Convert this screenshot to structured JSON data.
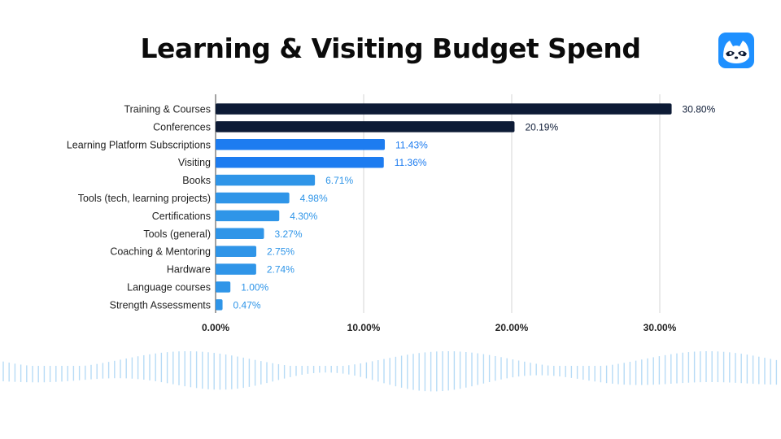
{
  "header": {
    "title": "Learning & Visiting Budget Spend"
  },
  "logo": {
    "icon": "raccoon-logo-icon",
    "color": "#1e90ff"
  },
  "colors": {
    "dark": "#0d1b36",
    "blue": "#1d7cf0",
    "light_blue": "#2f95e8",
    "wave": "#9fd0f3"
  },
  "chart_data": {
    "type": "bar",
    "orientation": "horizontal",
    "title": "",
    "xlabel": "",
    "ylabel": "",
    "xlim": [
      0,
      0.35
    ],
    "grid": true,
    "categories": [
      "Training & Courses",
      "Conferences",
      "Learning Platform Subscriptions",
      "Visiting",
      "Books",
      "Tools (tech, learning projects)",
      "Certifications",
      "Tools (general)",
      "Coaching & Mentoring",
      "Hardware",
      "Language courses",
      "Strength Assessments"
    ],
    "values": [
      0.308,
      0.2019,
      0.1143,
      0.1136,
      0.0671,
      0.0498,
      0.043,
      0.0327,
      0.0275,
      0.0274,
      0.01,
      0.0047
    ],
    "value_labels": [
      "30.80%",
      "20.19%",
      "11.43%",
      "11.36%",
      "6.71%",
      "4.98%",
      "4.30%",
      "3.27%",
      "2.75%",
      "2.74%",
      "1.00%",
      "0.47%"
    ],
    "bar_colors": [
      "#0d1b36",
      "#0d1b36",
      "#1d7cf0",
      "#1d7cf0",
      "#2f95e8",
      "#2f95e8",
      "#2f95e8",
      "#2f95e8",
      "#2f95e8",
      "#2f95e8",
      "#2f95e8",
      "#2f95e8"
    ],
    "value_label_colors": [
      "#0d1b36",
      "#0d1b36",
      "#1d7cf0",
      "#1d7cf0",
      "#2f95e8",
      "#2f95e8",
      "#2f95e8",
      "#2f95e8",
      "#2f95e8",
      "#2f95e8",
      "#2f95e8",
      "#2f95e8"
    ],
    "x_ticks": [
      0,
      0.1,
      0.2,
      0.3
    ],
    "x_tick_labels": [
      "0.00%",
      "10.00%",
      "20.00%",
      "30.00%"
    ]
  }
}
